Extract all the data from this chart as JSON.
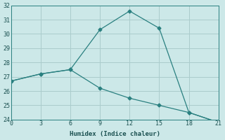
{
  "xlabel": "Humidex (Indice chaleur)",
  "line1_x": [
    0,
    3,
    6,
    9,
    12,
    15,
    18,
    21
  ],
  "line1_y": [
    26.7,
    27.2,
    27.5,
    30.3,
    31.6,
    30.4,
    24.5,
    23.8
  ],
  "line2_x": [
    0,
    3,
    6,
    9,
    12,
    15,
    18,
    21
  ],
  "line2_y": [
    26.7,
    27.2,
    27.5,
    26.2,
    25.5,
    25.0,
    24.5,
    23.8
  ],
  "line_color": "#2a8080",
  "bg_color": "#cce8e8",
  "grid_color": "#aacccc",
  "xlim": [
    0,
    21
  ],
  "ylim": [
    24,
    32
  ],
  "xticks": [
    0,
    3,
    6,
    9,
    12,
    15,
    18,
    21
  ],
  "yticks": [
    24,
    25,
    26,
    27,
    28,
    29,
    30,
    31,
    32
  ],
  "marker": "D",
  "markersize": 2.5
}
